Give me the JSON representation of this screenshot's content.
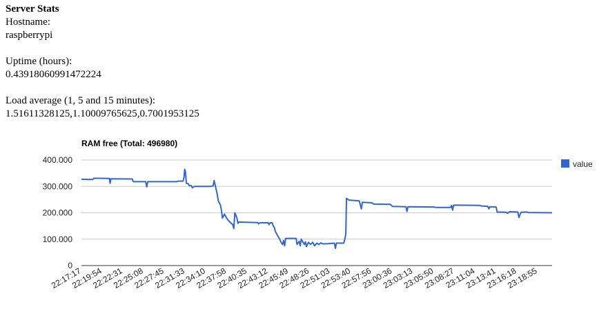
{
  "page": {
    "heading": "Server Stats",
    "hostname_label": "Hostname:",
    "hostname_value": "raspberrypi",
    "uptime_label": "Uptime (hours):",
    "uptime_value": "0.43918060991472224",
    "load_label": "Load average (1, 5 and 15 minutes):",
    "load_value": "1.51611328125,1.10009765625,0.7001953125"
  },
  "colors": {
    "series": "#3366cc",
    "grid": "#cccccc",
    "axis": "#333333",
    "text": "#222222"
  },
  "chart_data": {
    "type": "line",
    "title": "RAM free (Total: 496980)",
    "xlabel": "",
    "ylabel": "",
    "ylim": [
      0,
      400000
    ],
    "yticks": [
      0,
      100000,
      200000,
      300000,
      400000
    ],
    "ytick_labels": [
      "0",
      "100.000",
      "200.000",
      "300.000",
      "400.000"
    ],
    "xtick_labels": [
      "22:17:17",
      "22:19:54",
      "22:22:31",
      "22:25:08",
      "22:27:45",
      "22:31:33",
      "22:34:10",
      "22:37:58",
      "22:40:35",
      "22:43:12",
      "22:45:49",
      "22:48:26",
      "22:51:03",
      "22:53:40",
      "22:57:56",
      "23:00:36",
      "23:03:13",
      "23:05:50",
      "23:08:27",
      "23:11:04",
      "23:13:41",
      "23:16:18",
      "23:18:55"
    ],
    "x_range": [
      0,
      22.7
    ],
    "legend": {
      "position": "right",
      "entries": [
        "value"
      ]
    },
    "grid": true,
    "series": [
      {
        "name": "value",
        "points": [
          [
            0,
            327000
          ],
          [
            0.55,
            326000
          ],
          [
            0.6,
            331000
          ],
          [
            1.35,
            330000
          ],
          [
            1.38,
            312000
          ],
          [
            1.42,
            329000
          ],
          [
            2.45,
            328000
          ],
          [
            2.5,
            318000
          ],
          [
            3.1,
            318000
          ],
          [
            3.15,
            298000
          ],
          [
            3.2,
            318000
          ],
          [
            4.6,
            318000
          ],
          [
            4.65,
            320000
          ],
          [
            4.9,
            320000
          ],
          [
            4.95,
            335000
          ],
          [
            4.98,
            365000
          ],
          [
            5.02,
            355000
          ],
          [
            5.06,
            312000
          ],
          [
            5.15,
            310000
          ],
          [
            5.2,
            303000
          ],
          [
            5.3,
            303000
          ],
          [
            5.35,
            295000
          ],
          [
            5.45,
            300000
          ],
          [
            6.2,
            300000
          ],
          [
            6.35,
            302000
          ],
          [
            6.4,
            322000
          ],
          [
            6.45,
            305000
          ],
          [
            6.55,
            270000
          ],
          [
            6.6,
            245000
          ],
          [
            6.7,
            230000
          ],
          [
            6.75,
            210000
          ],
          [
            6.8,
            180000
          ],
          [
            6.9,
            195000
          ],
          [
            7.0,
            180000
          ],
          [
            7.1,
            170000
          ],
          [
            7.2,
            162000
          ],
          [
            7.3,
            155000
          ],
          [
            7.35,
            140000
          ],
          [
            7.4,
            200000
          ],
          [
            7.45,
            190000
          ],
          [
            7.5,
            180000
          ],
          [
            7.55,
            160000
          ],
          [
            7.6,
            165000
          ],
          [
            8.5,
            163000
          ],
          [
            8.55,
            158000
          ],
          [
            8.6,
            162000
          ],
          [
            9.0,
            162000
          ],
          [
            9.05,
            155000
          ],
          [
            9.1,
            162000
          ],
          [
            9.2,
            162000
          ],
          [
            9.25,
            150000
          ],
          [
            9.3,
            145000
          ],
          [
            9.35,
            130000
          ],
          [
            9.45,
            115000
          ],
          [
            9.55,
            102000
          ],
          [
            9.65,
            85000
          ],
          [
            9.7,
            80000
          ],
          [
            9.75,
            95000
          ],
          [
            9.8,
            75000
          ],
          [
            9.85,
            103000
          ],
          [
            10.35,
            103000
          ],
          [
            10.4,
            80000
          ],
          [
            10.5,
            92000
          ],
          [
            10.55,
            75000
          ],
          [
            10.6,
            100000
          ],
          [
            10.75,
            80000
          ],
          [
            10.8,
            90000
          ],
          [
            10.85,
            72000
          ],
          [
            10.95,
            88000
          ],
          [
            11.05,
            80000
          ],
          [
            11.15,
            88000
          ],
          [
            11.25,
            75000
          ],
          [
            11.35,
            85000
          ],
          [
            11.45,
            80000
          ],
          [
            11.55,
            86000
          ],
          [
            11.65,
            82000
          ],
          [
            11.9,
            83000
          ],
          [
            12.2,
            85000
          ],
          [
            12.25,
            65000
          ],
          [
            12.3,
            85000
          ],
          [
            12.65,
            85000
          ],
          [
            12.7,
            100000
          ],
          [
            12.75,
            120000
          ],
          [
            12.78,
            255000
          ],
          [
            12.9,
            248000
          ],
          [
            13.4,
            245000
          ],
          [
            13.5,
            215000
          ],
          [
            13.55,
            240000
          ],
          [
            14.0,
            238000
          ],
          [
            14.1,
            233000
          ],
          [
            14.9,
            232000
          ],
          [
            15.0,
            224000
          ],
          [
            15.65,
            223000
          ],
          [
            15.7,
            205000
          ],
          [
            15.75,
            223000
          ],
          [
            17.0,
            222000
          ],
          [
            17.1,
            220000
          ],
          [
            17.8,
            220000
          ],
          [
            17.85,
            228000
          ],
          [
            17.9,
            210000
          ],
          [
            17.95,
            229000
          ],
          [
            19.2,
            228000
          ],
          [
            19.3,
            226000
          ],
          [
            19.6,
            224000
          ],
          [
            19.65,
            215000
          ],
          [
            19.7,
            223000
          ],
          [
            20.0,
            222000
          ],
          [
            20.05,
            203000
          ],
          [
            20.5,
            202000
          ],
          [
            20.55,
            198000
          ],
          [
            20.65,
            204000
          ],
          [
            21.05,
            203000
          ],
          [
            21.1,
            182000
          ],
          [
            21.2,
            202000
          ],
          [
            21.5,
            203000
          ],
          [
            21.55,
            201000
          ],
          [
            22.7,
            200000
          ]
        ]
      }
    ]
  }
}
